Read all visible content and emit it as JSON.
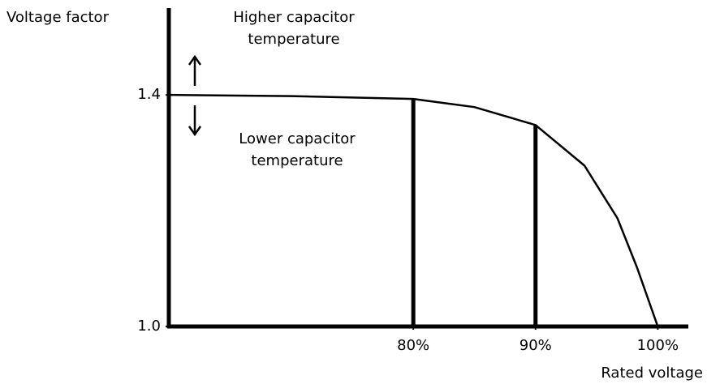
{
  "chart_data": {
    "type": "line",
    "y_label": "Voltage factor",
    "x_label": "Rated voltage",
    "annotations": [
      [
        "Higher capacitor",
        "temperature"
      ],
      [
        "Lower capacitor",
        "temperature"
      ]
    ],
    "x": [
      60,
      70,
      80,
      85,
      90,
      94,
      96.7,
      98.3,
      100
    ],
    "series": [
      {
        "color": "#000000",
        "values": [
          1.4,
          1.398,
          1.393,
          1.379,
          1.348,
          1.278,
          1.187,
          1.102,
          1.0
        ]
      }
    ],
    "xlim": [
      60,
      102.5
    ],
    "ylim": [
      1.0,
      1.55
    ],
    "xticks": [
      {
        "value": 80,
        "label": "80%"
      },
      {
        "value": 90,
        "label": "90%"
      },
      {
        "value": 100,
        "label": "100%"
      }
    ],
    "yticks": [
      {
        "value": 1.0,
        "label": "1.0"
      },
      1.4
    ],
    "drop_lines": [
      2,
      4
    ]
  }
}
